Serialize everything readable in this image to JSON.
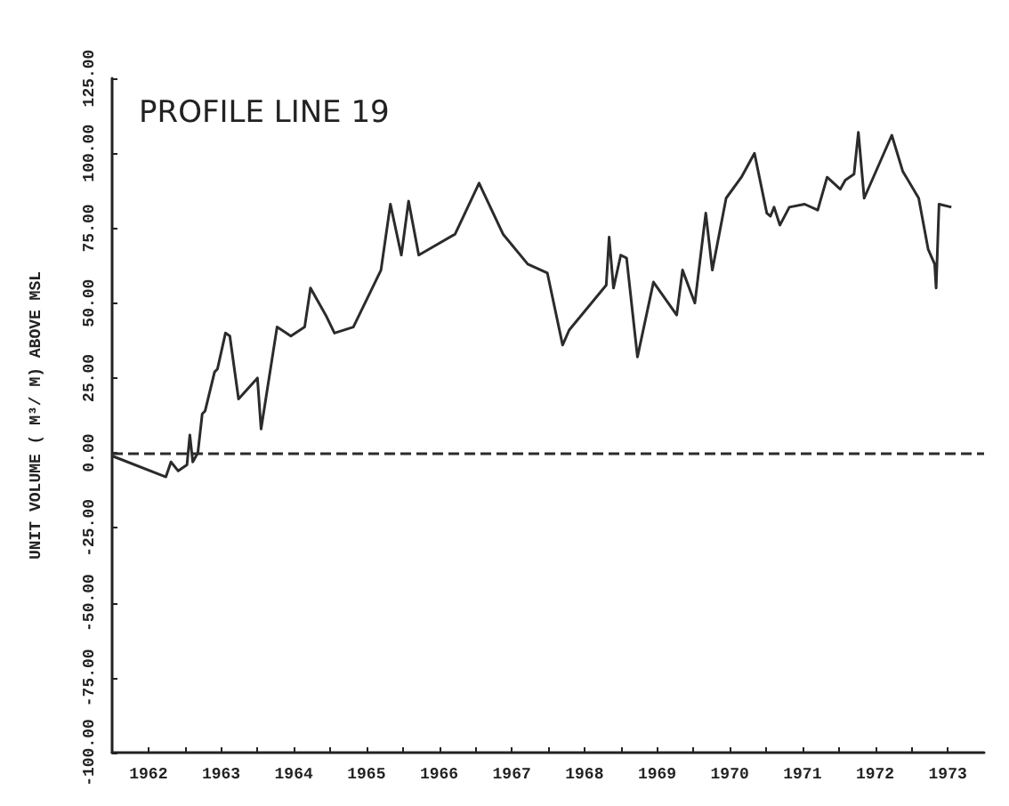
{
  "chart_data": {
    "type": "line",
    "title": "PROFILE LINE 19",
    "ylabel": "UNIT VOLUME ( M³/ M) ABOVE MSL",
    "x": [
      1962.0,
      1962.74,
      1962.81,
      1962.91,
      1963.03,
      1963.07,
      1963.11,
      1963.18,
      1963.24,
      1963.28,
      1963.41,
      1963.45,
      1963.56,
      1963.62,
      1963.74,
      1964.0,
      1964.05,
      1964.27,
      1964.46,
      1964.65,
      1964.73,
      1964.94,
      1965.06,
      1965.32,
      1965.7,
      1965.83,
      1965.98,
      1966.08,
      1966.22,
      1966.72,
      1967.05,
      1967.38,
      1967.72,
      1967.99,
      1968.2,
      1968.29,
      1968.8,
      1968.84,
      1968.9,
      1969.0,
      1969.08,
      1969.23,
      1969.45,
      1969.77,
      1969.85,
      1970.02,
      1970.17,
      1970.26,
      1970.45,
      1970.66,
      1970.84,
      1971.01,
      1971.06,
      1971.11,
      1971.19,
      1971.32,
      1971.53,
      1971.71,
      1971.84,
      1972.02,
      1972.09,
      1972.21,
      1972.27,
      1972.35,
      1972.73,
      1972.88,
      1973.1,
      1973.23,
      1973.32,
      1973.34,
      1973.38,
      1973.55
    ],
    "series": [
      {
        "color": "#2b2b2b",
        "values": [
          -1,
          -8,
          -3,
          -6,
          -4,
          6,
          -3,
          0,
          13,
          14,
          27,
          28,
          40,
          39,
          18,
          25,
          8,
          42,
          39,
          42,
          55,
          46,
          40,
          42,
          61,
          83,
          66,
          84,
          66,
          73,
          90,
          73,
          63,
          60,
          36,
          41,
          56,
          72,
          55,
          66,
          65,
          32,
          57,
          46,
          61,
          50,
          80,
          61,
          85,
          92,
          100,
          80,
          79,
          82,
          76,
          82,
          83,
          81,
          92,
          88,
          91,
          93,
          107,
          85,
          106,
          94,
          85,
          68,
          63,
          55,
          83,
          82
        ]
      }
    ],
    "xlim": [
      1962,
      1974
    ],
    "xticks": [
      {
        "value": 1962.5,
        "label": "1962"
      },
      {
        "value": 1963,
        "label": null
      },
      {
        "value": 1963.5,
        "label": "1963"
      },
      {
        "value": 1964,
        "label": null
      },
      {
        "value": 1964.5,
        "label": "1964"
      },
      {
        "value": 1965,
        "label": null
      },
      {
        "value": 1965.5,
        "label": "1965"
      },
      {
        "value": 1966,
        "label": null
      },
      {
        "value": 1966.5,
        "label": "1966"
      },
      {
        "value": 1967,
        "label": null
      },
      {
        "value": 1967.5,
        "label": "1967"
      },
      {
        "value": 1968,
        "label": null
      },
      {
        "value": 1968.5,
        "label": "1968"
      },
      {
        "value": 1969,
        "label": null
      },
      {
        "value": 1969.5,
        "label": "1969"
      },
      {
        "value": 1970,
        "label": null
      },
      {
        "value": 1970.5,
        "label": "1970"
      },
      {
        "value": 1971,
        "label": null
      },
      {
        "value": 1971.5,
        "label": "1971"
      },
      {
        "value": 1972,
        "label": null
      },
      {
        "value": 1972.5,
        "label": "1972"
      },
      {
        "value": 1973,
        "label": null
      },
      {
        "value": 1973.5,
        "label": "1973"
      }
    ],
    "ylim": [
      -100,
      125
    ],
    "yticks": [
      {
        "value": -100,
        "label": "-100.00"
      },
      {
        "value": -75,
        "label": "-75.00"
      },
      {
        "value": -50,
        "label": "-50.00"
      },
      {
        "value": -25,
        "label": "-25.00"
      },
      {
        "value": 0,
        "label": "0.00"
      },
      {
        "value": 25,
        "label": "25.00"
      },
      {
        "value": 50,
        "label": "50.00"
      },
      {
        "value": 75,
        "label": "75.00"
      },
      {
        "value": 100,
        "label": "100.00"
      },
      {
        "value": 125,
        "label": "125.00"
      }
    ],
    "ref_lines": [
      {
        "axis": "y",
        "value": 0,
        "label": null,
        "color": "#2b2b2b",
        "line_style": "dashed"
      }
    ],
    "grid": false,
    "marker": "none",
    "line_style": "solid"
  }
}
